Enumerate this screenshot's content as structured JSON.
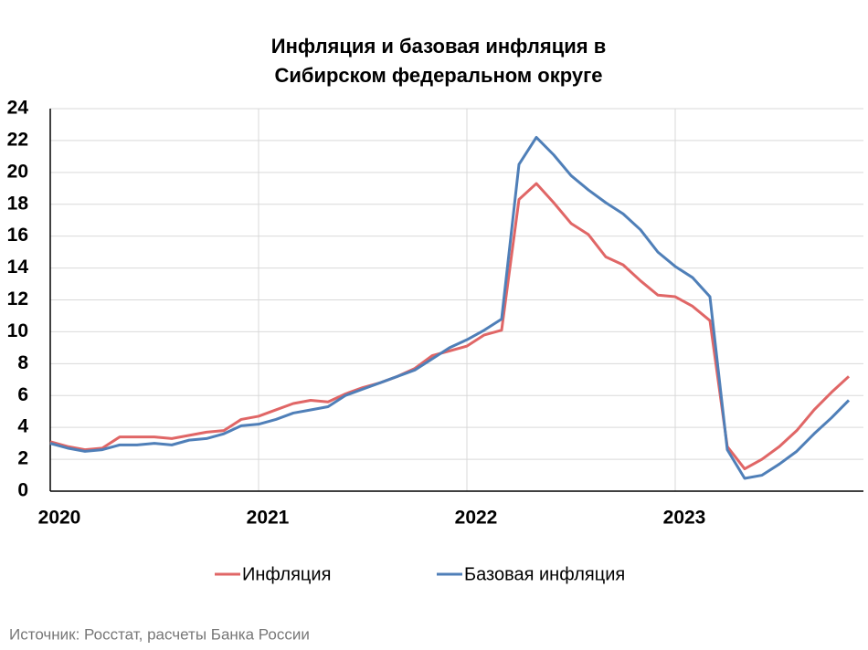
{
  "chart_data": {
    "type": "line",
    "title": [
      "Инфляция и базовая инфляция в",
      "Сибирском федеральном округе"
    ],
    "categories": [
      "2020",
      null,
      null,
      null,
      null,
      null,
      null,
      null,
      null,
      null,
      null,
      null,
      "2021",
      null,
      null,
      null,
      null,
      null,
      null,
      null,
      null,
      null,
      null,
      null,
      "2022",
      null,
      null,
      null,
      null,
      null,
      null,
      null,
      null,
      null,
      null,
      null,
      "2023",
      null,
      null,
      null,
      null,
      null,
      null,
      null,
      null,
      null,
      null
    ],
    "series": [
      {
        "name": "Инфляция",
        "color": "#e06666",
        "values": [
          3.1,
          2.8,
          2.6,
          2.7,
          3.4,
          3.4,
          3.4,
          3.3,
          3.5,
          3.7,
          3.8,
          4.5,
          4.7,
          5.1,
          5.5,
          5.7,
          5.6,
          6.1,
          6.5,
          6.8,
          7.2,
          7.7,
          8.5,
          8.8,
          9.1,
          9.8,
          10.1,
          18.3,
          19.3,
          18.1,
          16.8,
          16.1,
          14.7,
          14.2,
          13.2,
          12.3,
          12.2,
          11.6,
          10.7,
          2.8,
          1.4,
          2.0,
          2.8,
          3.8,
          5.1,
          6.2,
          7.2
        ]
      },
      {
        "name": "Базовая инфляция",
        "color": "#4f7fb8",
        "values": [
          3.0,
          2.7,
          2.5,
          2.6,
          2.9,
          2.9,
          3.0,
          2.9,
          3.2,
          3.3,
          3.6,
          4.1,
          4.2,
          4.5,
          4.9,
          5.1,
          5.3,
          6.0,
          6.4,
          6.8,
          7.2,
          7.6,
          8.3,
          9.0,
          9.5,
          10.1,
          10.8,
          20.5,
          22.2,
          21.1,
          19.8,
          18.9,
          18.1,
          17.4,
          16.4,
          15.0,
          14.1,
          13.4,
          12.2,
          2.6,
          0.8,
          1.0,
          1.7,
          2.5,
          3.6,
          4.6,
          5.7
        ]
      }
    ],
    "ylim": [
      0,
      24
    ],
    "yticks": [
      0,
      2,
      4,
      6,
      8,
      10,
      12,
      14,
      16,
      18,
      20,
      22,
      24
    ],
    "grid": true,
    "legend": "bottom",
    "source": "Источник: Росстат, расчеты Банка России"
  }
}
